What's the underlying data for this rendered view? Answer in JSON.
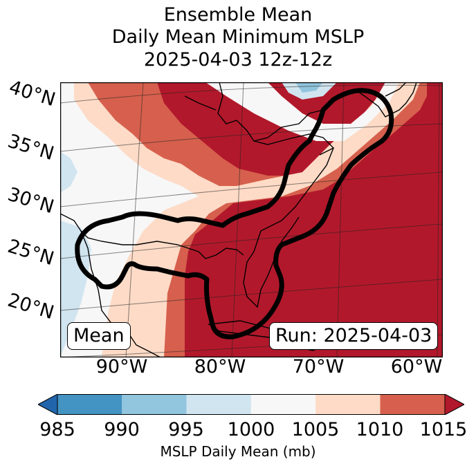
{
  "title": {
    "line1": "Ensemble Mean",
    "line2": "Daily Mean Minimum MSLP",
    "line3": "2025-04-03 12z-12z"
  },
  "map": {
    "lat_labels": [
      "40°N",
      "35°N",
      "30°N",
      "25°N",
      "20°N"
    ],
    "lon_labels": [
      "90°W",
      "80°W",
      "70°W",
      "60°W"
    ],
    "left_box": "Mean",
    "right_box": "Run: 2025-04-03",
    "colors": {
      "deep_red": "#b2182b",
      "red": "#d6604d",
      "light_red": "#fddbc7",
      "white": "#f7f7f7",
      "light_blue": "#d1e5f0",
      "blue": "#92c5de",
      "deep_blue": "#4393c3",
      "darkest_blue": "#2166ac"
    }
  },
  "colorbar": {
    "ticks": [
      "985",
      "990",
      "995",
      "1000",
      "1005",
      "1010",
      "1015"
    ],
    "label": "MSLP Daily Mean (mb)",
    "colors": [
      "#4393c3",
      "#92c5de",
      "#d1e5f0",
      "#f7f7f7",
      "#fddbc7",
      "#d6604d"
    ],
    "under_color": "#2166ac",
    "over_color": "#b2182b"
  }
}
